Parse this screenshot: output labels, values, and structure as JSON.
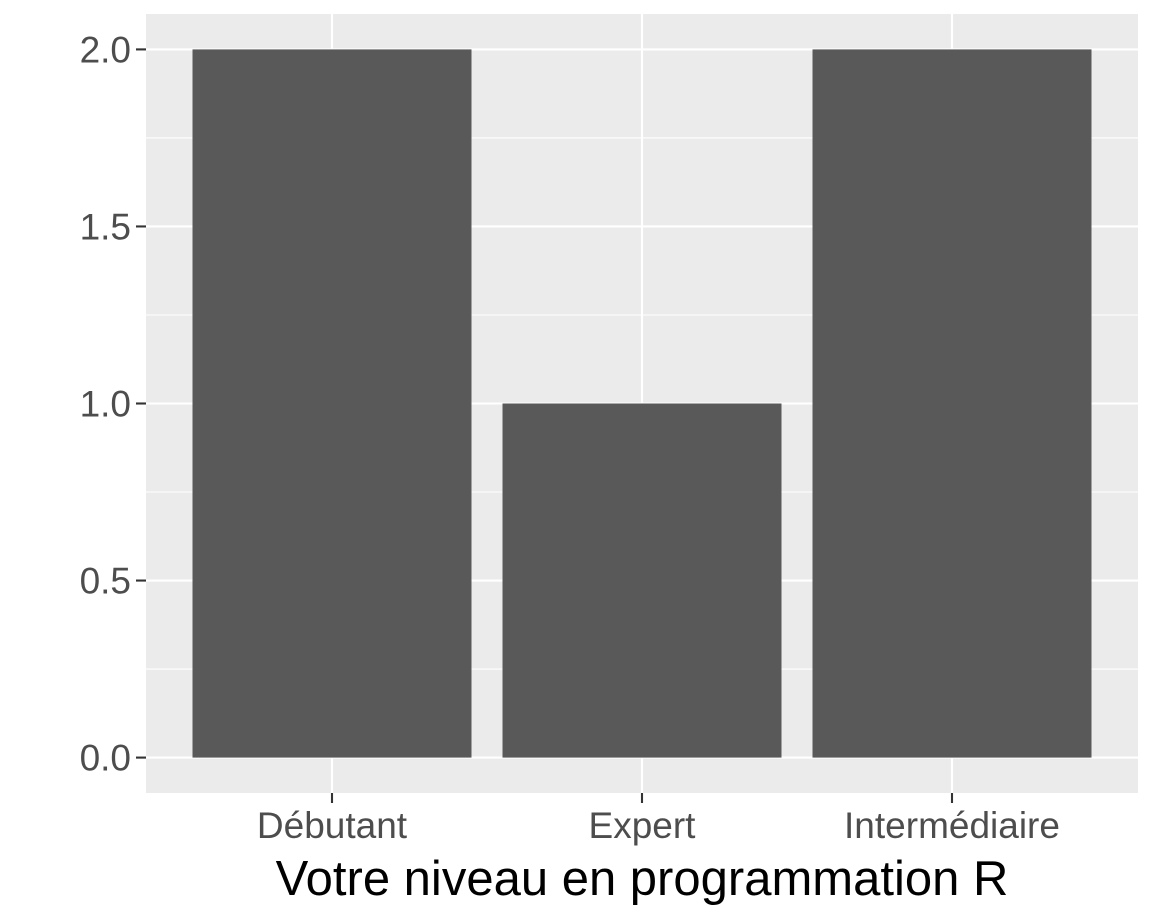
{
  "chart_data": {
    "type": "bar",
    "title": "",
    "xlabel": "Votre niveau en programmation R",
    "ylabel": "",
    "categories": [
      "Débutant",
      "Expert",
      "Intermédiaire"
    ],
    "values": [
      2,
      1,
      2
    ],
    "ylim": [
      -0.1,
      2.1
    ],
    "yticks": [
      0.0,
      0.5,
      1.0,
      1.5,
      2.0
    ],
    "ytick_labels": [
      "0.0",
      "0.5",
      "1.0",
      "1.5",
      "2.0"
    ],
    "grid": true,
    "legend": "none",
    "colors": {
      "bar": "#595959",
      "panel": "#ebebeb",
      "grid": "#ffffff",
      "tick_label": "#4d4d4d",
      "axis_title": "#000000"
    }
  }
}
